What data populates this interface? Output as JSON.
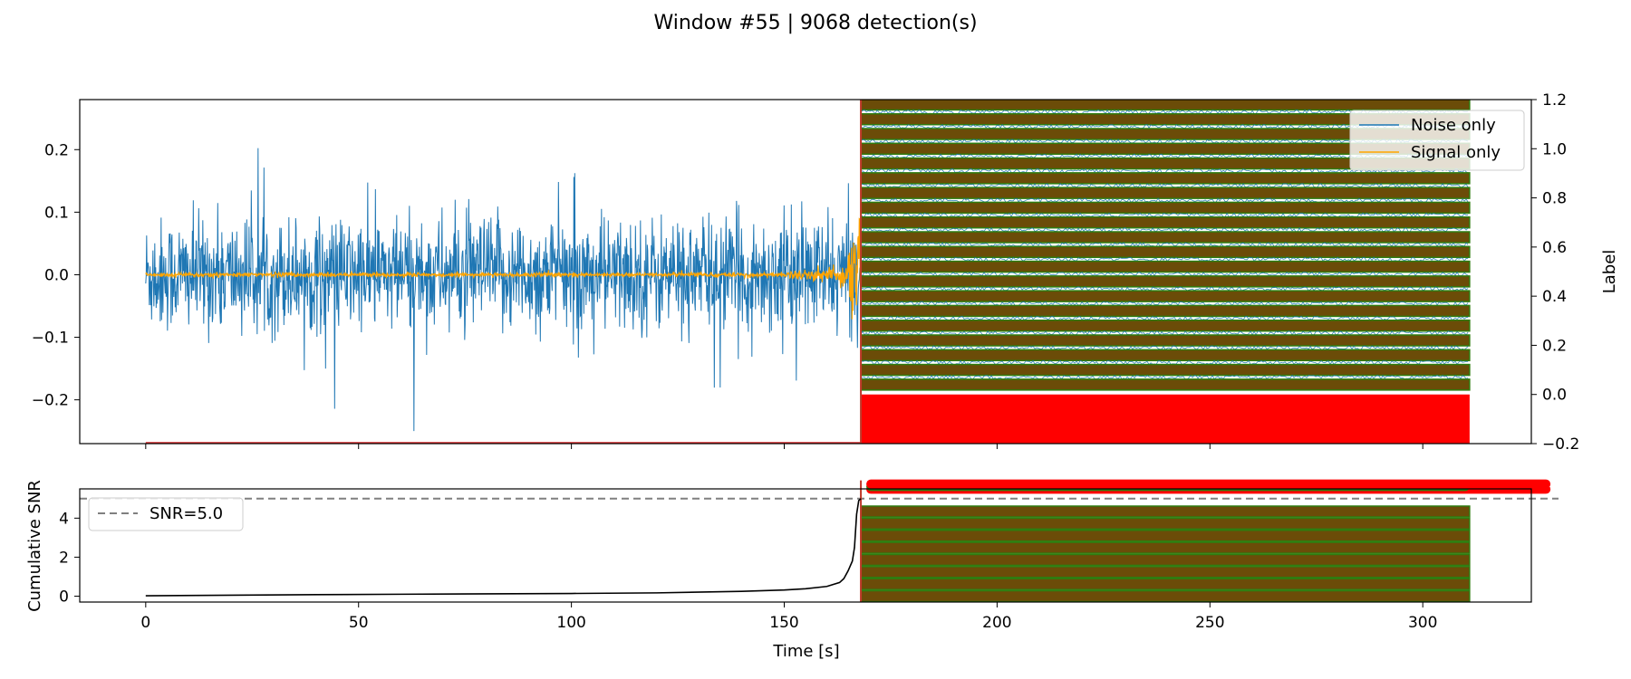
{
  "figure": {
    "title": "Window #55 | 9068 detection(s)"
  },
  "chart_data": [
    {
      "type": "line",
      "panel": "top",
      "series": [
        {
          "name": "Noise only",
          "color": "#1f77b4",
          "x_range": [
            0,
            168
          ],
          "amplitude_typical": 0.12,
          "amplitude_peak": 0.25
        },
        {
          "name": "Signal only",
          "color": "#ffa500",
          "x_range": [
            0,
            168
          ],
          "onset": 165,
          "amplitude_peak": 0.1
        }
      ],
      "detections": {
        "x_range": [
          168,
          311
        ],
        "label_levels": [
          1.18,
          1.12,
          1.06,
          1.0,
          0.94,
          0.88,
          0.82,
          0.76,
          0.7,
          0.64,
          0.58,
          0.52,
          0.46,
          0.4,
          0.34,
          0.28,
          0.22,
          0.16,
          0.1,
          0.04
        ],
        "band_color": "#6b4c08",
        "edge_color": "#2e7d10",
        "red_block_label_range": [
          -0.2,
          0.0
        ],
        "red_color": "#ff0000"
      },
      "xlim": [
        -15.5,
        325.5
      ],
      "ylim": [
        -0.27,
        0.28
      ],
      "y_ticks": [
        "0.2",
        "0.1",
        "0.0",
        "−0.1",
        "−0.2"
      ],
      "y_tick_values": [
        0.2,
        0.1,
        0.0,
        -0.1,
        -0.2
      ],
      "y2label": "Label",
      "y2lim": [
        -0.2,
        1.2
      ],
      "y2_ticks": [
        "1.2",
        "1.0",
        "0.8",
        "0.6",
        "0.4",
        "0.2",
        "0.0",
        "−0.2"
      ],
      "y2_tick_values": [
        1.2,
        1.0,
        0.8,
        0.6,
        0.4,
        0.2,
        0.0,
        -0.2
      ],
      "legend": {
        "position": "top-right",
        "entries": [
          "Noise only",
          "Signal only"
        ]
      },
      "grid": false
    },
    {
      "type": "line",
      "panel": "bottom",
      "series": [
        {
          "name": "",
          "color": "#000000",
          "x": [
            0,
            20,
            40,
            60,
            80,
            100,
            120,
            140,
            150,
            155,
            160,
            163,
            164,
            165,
            166,
            166.5,
            167,
            167.5,
            168
          ],
          "y": [
            0.02,
            0.05,
            0.08,
            0.1,
            0.12,
            0.14,
            0.17,
            0.25,
            0.32,
            0.38,
            0.5,
            0.7,
            0.9,
            1.3,
            1.8,
            2.5,
            4.2,
            4.9,
            5.0
          ]
        }
      ],
      "threshold": {
        "name": "SNR=5.0",
        "value": 5.0,
        "color": "#808080"
      },
      "detections": {
        "x_range": [
          168,
          311
        ],
        "band_levels": [
          0.0,
          0.62,
          1.24,
          1.86,
          2.48,
          3.1,
          3.72,
          4.34
        ],
        "top_levels": [
          5.48,
          5.62,
          5.75
        ],
        "red_marker_x_end": 330
      },
      "xlim": [
        -15.5,
        325.5
      ],
      "ylim": [
        -0.3,
        5.5
      ],
      "ylabel": "Cumulative SNR",
      "y_ticks": [
        "4",
        "2",
        "0"
      ],
      "y_tick_values": [
        4,
        2,
        0
      ],
      "xlabel": "Time [s]",
      "x_ticks": [
        "0",
        "50",
        "100",
        "150",
        "200",
        "250",
        "300"
      ],
      "x_tick_values": [
        0,
        50,
        100,
        150,
        200,
        250,
        300
      ],
      "legend": {
        "position": "top-left",
        "entries": [
          "SNR=5.0"
        ]
      },
      "grid": false
    }
  ]
}
